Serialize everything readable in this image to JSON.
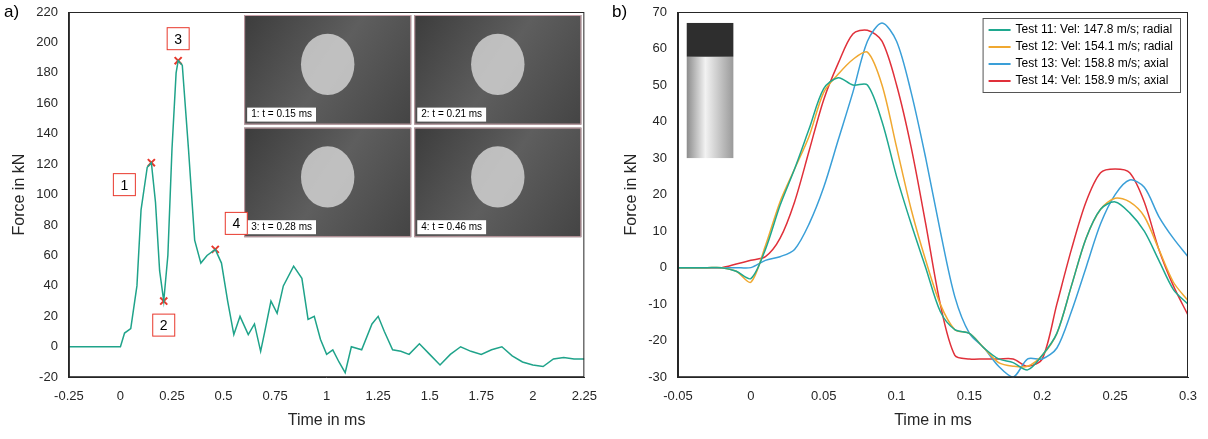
{
  "chart_data": [
    {
      "type": "line",
      "panel": "a)",
      "x_label": "Time in ms",
      "y_label": "Force in kN",
      "xlim": [
        -0.25,
        2.25
      ],
      "xticks": [
        -0.25,
        0,
        0.25,
        0.5,
        0.75,
        1,
        1.25,
        1.5,
        1.75,
        2,
        2.25
      ],
      "ylim": [
        -20,
        220
      ],
      "yticks": [
        -20,
        0,
        20,
        40,
        60,
        80,
        100,
        120,
        140,
        160,
        180,
        200,
        220
      ],
      "grid": false,
      "color": "#1fa38a",
      "x": [
        -0.25,
        0,
        0.02,
        0.05,
        0.08,
        0.1,
        0.13,
        0.15,
        0.17,
        0.19,
        0.21,
        0.23,
        0.25,
        0.27,
        0.28,
        0.3,
        0.33,
        0.36,
        0.39,
        0.42,
        0.46,
        0.49,
        0.52,
        0.55,
        0.58,
        0.62,
        0.65,
        0.68,
        0.7,
        0.73,
        0.76,
        0.79,
        0.84,
        0.88,
        0.91,
        0.94,
        0.97,
        1.0,
        1.03,
        1.06,
        1.09,
        1.12,
        1.17,
        1.22,
        1.25,
        1.28,
        1.32,
        1.36,
        1.4,
        1.45,
        1.5,
        1.55,
        1.6,
        1.65,
        1.7,
        1.75,
        1.8,
        1.85,
        1.9,
        1.95,
        2.0,
        2.05,
        2.1,
        2.15,
        2.2,
        2.25
      ],
      "values": [
        0,
        0,
        9,
        12,
        40,
        90,
        118,
        121,
        95,
        50,
        30,
        60,
        130,
        180,
        188,
        185,
        130,
        70,
        55,
        60,
        64,
        55,
        30,
        8,
        20,
        8,
        15,
        -3,
        10,
        30,
        22,
        40,
        53,
        45,
        18,
        20,
        5,
        -5,
        -2,
        -10,
        -17,
        0,
        -2,
        15,
        20,
        10,
        -2,
        -3,
        -5,
        2,
        -5,
        -12,
        -5,
        0,
        -3,
        -5,
        -2,
        0,
        -6,
        -10,
        -12,
        -13,
        -8,
        -7,
        -8,
        -8
      ],
      "annotations": [
        {
          "label": "1",
          "x": 0.15,
          "y": 121,
          "color": "#e8382c",
          "marker": "x"
        },
        {
          "label": "2",
          "x": 0.21,
          "y": 30,
          "color": "#e8382c",
          "marker": "x"
        },
        {
          "label": "3",
          "x": 0.28,
          "y": 188,
          "color": "#e8382c",
          "marker": "x"
        },
        {
          "label": "4",
          "x": 0.46,
          "y": 64,
          "color": "#e8382c",
          "marker": "x"
        }
      ],
      "images": [
        "1: t = 0.15 ms",
        "2: t = 0.21 ms",
        "3: t = 0.28 ms",
        "4: t = 0.46 ms"
      ]
    },
    {
      "type": "line",
      "panel": "b)",
      "x_label": "Time in ms",
      "y_label": "Force in kN",
      "xlim": [
        -0.05,
        0.3
      ],
      "xticks": [
        -0.05,
        0,
        0.05,
        0.1,
        0.15,
        0.2,
        0.25,
        0.3
      ],
      "ylim": [
        -30,
        70
      ],
      "yticks": [
        -30,
        -20,
        -10,
        0,
        10,
        20,
        30,
        40,
        50,
        60,
        70
      ],
      "grid": false,
      "legend": "upper right",
      "x": [
        -0.05,
        -0.04,
        -0.03,
        -0.02,
        -0.01,
        0,
        0.01,
        0.02,
        0.03,
        0.04,
        0.05,
        0.06,
        0.07,
        0.08,
        0.09,
        0.1,
        0.11,
        0.12,
        0.13,
        0.14,
        0.15,
        0.16,
        0.17,
        0.18,
        0.19,
        0.2,
        0.21,
        0.22,
        0.23,
        0.24,
        0.25,
        0.26,
        0.27,
        0.28,
        0.29,
        0.3
      ],
      "series": [
        {
          "name": "Test 11: Vel: 147.8 m/s; radial",
          "color": "#1fa88f",
          "values": [
            0,
            0,
            0,
            0,
            -1,
            -3,
            5,
            17,
            27,
            38,
            49,
            52,
            50,
            50,
            40,
            25,
            12,
            0,
            -12,
            -17,
            -18,
            -22,
            -25,
            -26,
            -28,
            -24,
            -18,
            -5,
            8,
            16,
            18,
            15,
            10,
            2,
            -6,
            -10
          ]
        },
        {
          "name": "Test 12: Vel: 154.1 m/s; radial",
          "color": "#f0a830",
          "values": [
            0,
            0,
            0,
            0,
            -1,
            -4,
            6,
            18,
            27,
            36,
            48,
            53,
            57,
            59,
            50,
            33,
            16,
            2,
            -10,
            -17,
            -18,
            -22,
            -26,
            -27,
            -27,
            -24,
            -18,
            -5,
            8,
            16,
            19,
            18,
            14,
            5,
            -4,
            -9
          ]
        },
        {
          "name": "Test 13: Vel: 158.8 m/s; axial",
          "color": "#3a9fd8",
          "values": [
            0,
            0,
            0,
            0,
            0,
            0,
            2,
            3,
            5,
            12,
            22,
            35,
            48,
            62,
            67,
            62,
            48,
            30,
            10,
            -8,
            -18,
            -22,
            -27,
            -30,
            -25,
            -25,
            -22,
            -12,
            0,
            12,
            20,
            24,
            22,
            14,
            8,
            3
          ]
        },
        {
          "name": "Test 14: Vel: 158.9 m/s; axial",
          "color": "#e0303a",
          "values": [
            0,
            0,
            0,
            0,
            1,
            2,
            3,
            8,
            18,
            32,
            46,
            56,
            64,
            65,
            62,
            50,
            33,
            12,
            -10,
            -24,
            -25,
            -25,
            -25,
            -25,
            -27,
            -25,
            -10,
            5,
            18,
            26,
            27,
            26,
            18,
            5,
            -5,
            -13
          ]
        }
      ]
    }
  ]
}
